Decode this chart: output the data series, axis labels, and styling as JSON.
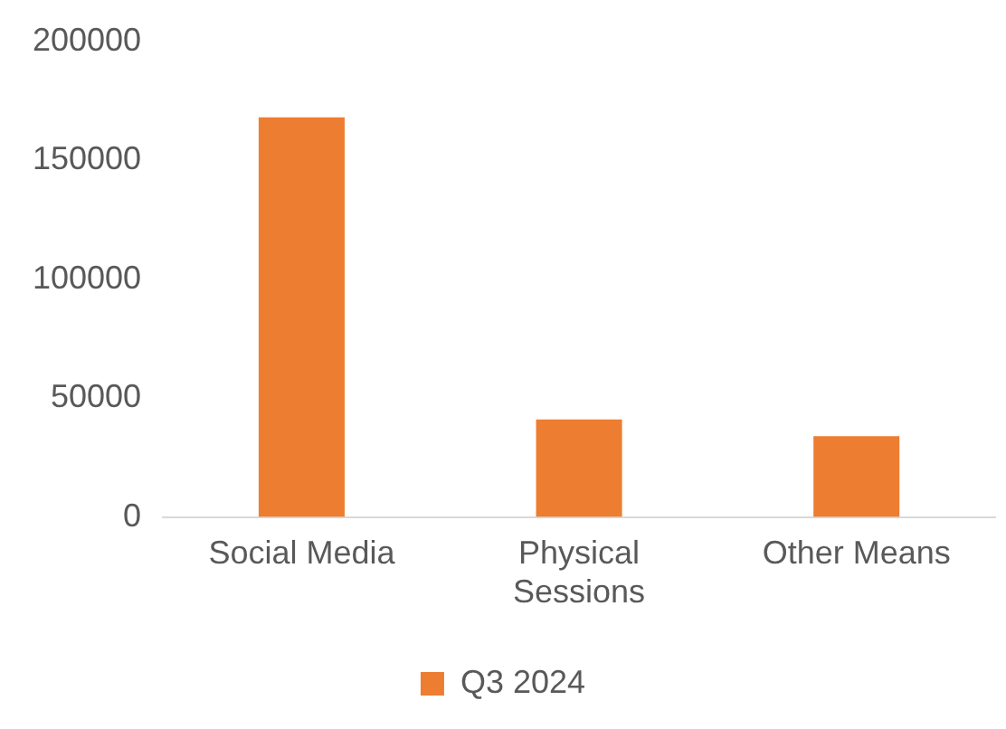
{
  "chart_data": {
    "type": "bar",
    "categories": [
      "Social Media",
      "Physical Sessions",
      "Other Means"
    ],
    "series": [
      {
        "name": "Q3 2024",
        "color": "#ed7d31",
        "values": [
          168000,
          41000,
          34000
        ]
      }
    ],
    "ylim": [
      0,
      200000
    ],
    "yticks": [
      0,
      50000,
      100000,
      150000,
      200000
    ],
    "grid": false,
    "legend": "bottom"
  }
}
